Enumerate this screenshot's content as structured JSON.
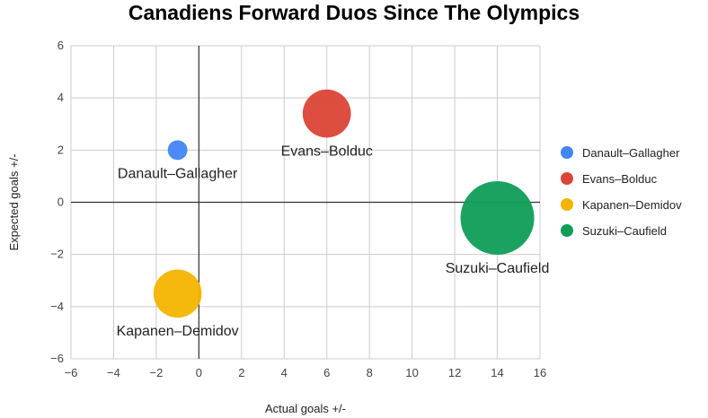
{
  "chart_data": {
    "type": "scatter",
    "title": "Canadiens Forward Duos Since The Olympics",
    "xlabel": "Actual goals +/-",
    "ylabel": "Expected goals +/-",
    "xlim": [
      -6,
      16
    ],
    "ylim": [
      -6,
      6
    ],
    "x_ticks": [
      "−6",
      "−4",
      "−2",
      "0",
      "2",
      "4",
      "6",
      "8",
      "10",
      "12",
      "14",
      "16"
    ],
    "y_ticks": [
      "−6",
      "−4",
      "−2",
      "0",
      "2",
      "4",
      "6"
    ],
    "grid": true,
    "legend_position": "right",
    "series": [
      {
        "name": "Danault–Gallagher",
        "label": "Danault–Gallagher",
        "x": -1,
        "y": 2,
        "size": 1,
        "color": "#4285F4"
      },
      {
        "name": "Evans–Bolduc",
        "label": "Evans–Bolduc",
        "x": 6,
        "y": 3.4,
        "size": 6,
        "color": "#DB4437"
      },
      {
        "name": "Kapanen–Demidov",
        "label": "Kapanen–Demidov",
        "x": -1,
        "y": -3.5,
        "size": 6,
        "color": "#F4B400"
      },
      {
        "name": "Suzuki–Caufield",
        "label": "Suzuki–Caufield",
        "x": 14,
        "y": -0.6,
        "size": 14,
        "color": "#0F9D58"
      }
    ]
  }
}
